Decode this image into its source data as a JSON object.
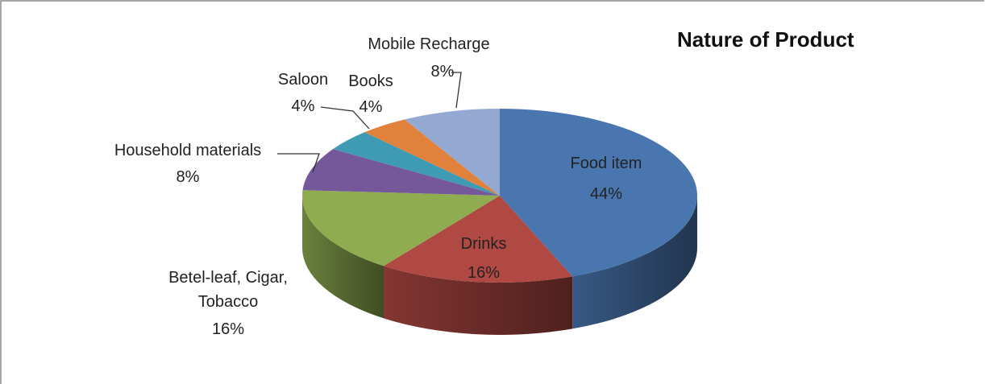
{
  "chart_data": {
    "type": "pie3d",
    "title": "Nature of Product",
    "categories": [
      "Food item",
      "Drinks",
      "Betel-leaf, Cigar, Tobacco",
      "Household materials",
      "Saloon",
      "Books",
      "Mobile Recharge"
    ],
    "values": [
      44,
      16,
      16,
      8,
      4,
      4,
      8
    ],
    "value_labels": [
      "44%",
      "16%",
      "16%",
      "8%",
      "4%",
      "4%",
      "8%"
    ],
    "colors": [
      "#4a76b0",
      "#b04843",
      "#8fac50",
      "#74589a",
      "#3e9bb3",
      "#e0823b",
      "#93a9d2"
    ]
  }
}
